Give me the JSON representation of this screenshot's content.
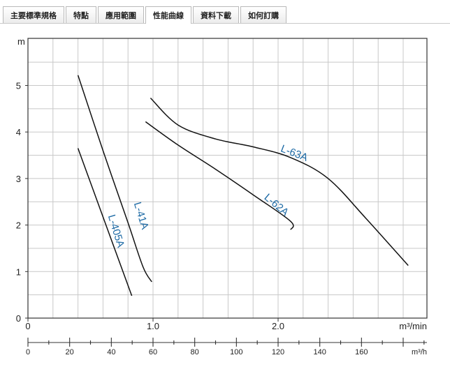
{
  "tabs": [
    {
      "label": "主要標準規格"
    },
    {
      "label": "特點"
    },
    {
      "label": "應用範圍"
    },
    {
      "label": "性能曲線",
      "active": true
    },
    {
      "label": "資料下載"
    },
    {
      "label": "如何訂購"
    }
  ],
  "chart_data": {
    "type": "line",
    "ylabel": "m",
    "xlabel": "m³/min",
    "x2label": "m³/h",
    "xlim": [
      0,
      3.25
    ],
    "ylim": [
      0,
      6
    ],
    "y_ticks": [
      "0",
      "1",
      "2",
      "3",
      "4",
      "5"
    ],
    "x_ticks": [
      "0",
      "1.0",
      "2.0"
    ],
    "x2_ticks": [
      "0",
      "20",
      "40",
      "60",
      "80",
      "100",
      "120",
      "140",
      "160"
    ],
    "grid": true,
    "line_color": "#111111",
    "label_color": "#1d6aa5",
    "series": [
      {
        "name": "L-405A",
        "x": [
          0.4,
          0.83
        ],
        "y": [
          3.65,
          0.48
        ]
      },
      {
        "name": "L-41A",
        "x": [
          0.4,
          0.6,
          0.8,
          0.92,
          0.99
        ],
        "y": [
          5.22,
          3.6,
          2.05,
          1.1,
          0.78
        ]
      },
      {
        "name": "L-62A",
        "x": [
          0.94,
          1.2,
          1.5,
          1.8,
          2.1,
          2.1
        ],
        "y": [
          4.22,
          3.72,
          3.2,
          2.65,
          2.08,
          1.9
        ]
      },
      {
        "name": "L-63A",
        "x": [
          0.98,
          1.2,
          1.5,
          1.8,
          2.1,
          2.4,
          2.7,
          3.04
        ],
        "y": [
          4.73,
          4.15,
          3.85,
          3.68,
          3.45,
          3.0,
          2.15,
          1.13
        ]
      }
    ]
  }
}
